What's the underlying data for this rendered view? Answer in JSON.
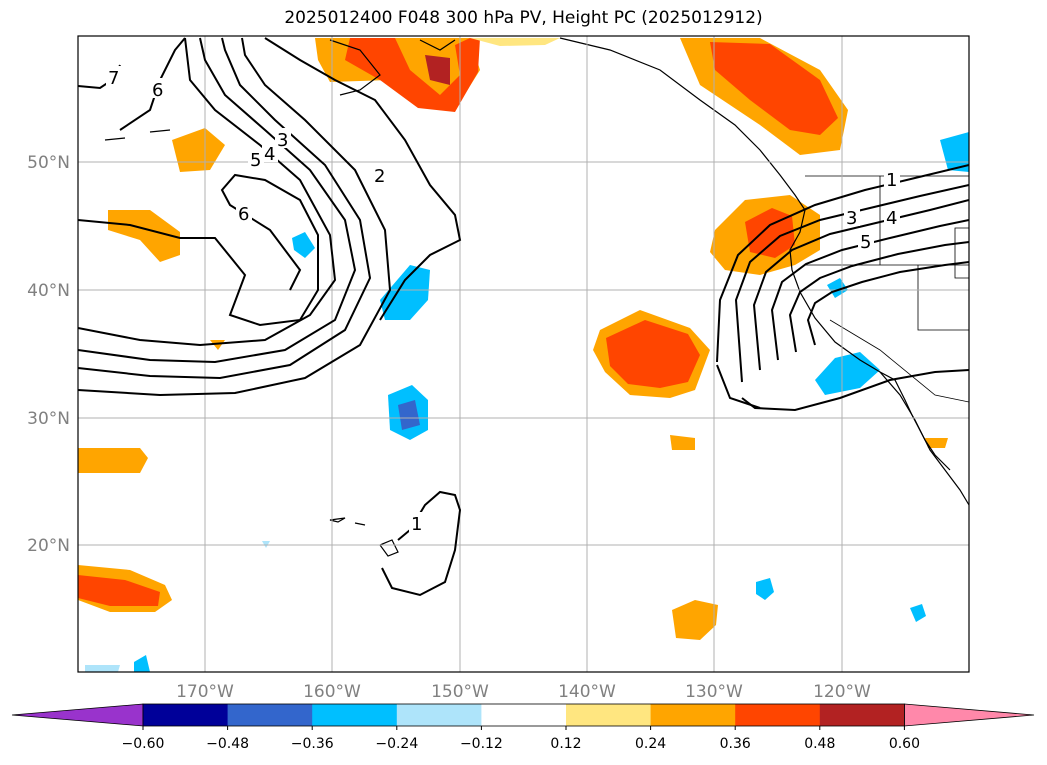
{
  "title": "2025012400 F048 300 hPa PV, Height PC (2025012912)",
  "lat_labels": [
    "50°N",
    "40°N",
    "30°N",
    "20°N"
  ],
  "lon_labels": [
    "170°W",
    "160°W",
    "150°W",
    "140°W",
    "130°W",
    "120°W"
  ],
  "colorbar": {
    "ticks": [
      "−0.60",
      "−0.48",
      "−0.36",
      "−0.24",
      "−0.12",
      "0.12",
      "0.24",
      "0.36",
      "0.48",
      "0.60"
    ],
    "colors": [
      "#9933cc",
      "#000099",
      "#3366cc",
      "#00bfff",
      "#aee4fa",
      "#ffffff",
      "#ffe680",
      "#ffa500",
      "#ff4500",
      "#b22222",
      "#ff88aa"
    ]
  },
  "contour_labels": [
    "7",
    "6",
    "3",
    "5",
    "4",
    "2",
    "6",
    "1",
    "3",
    "4",
    "5",
    "1"
  ]
}
